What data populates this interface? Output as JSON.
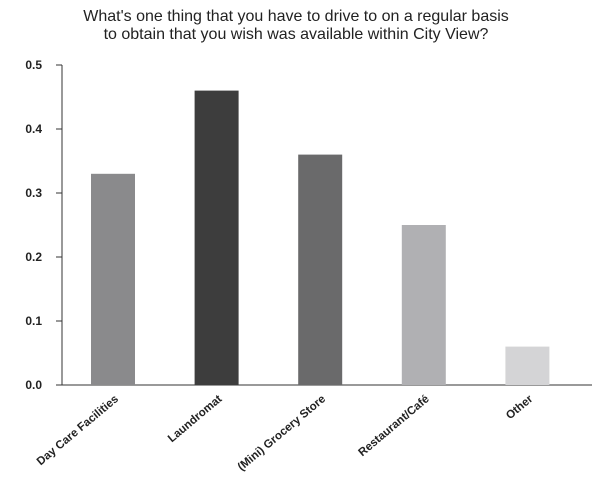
{
  "chart_data": {
    "type": "bar",
    "title_lines": [
      "What's one thing that you have to drive to on a regular basis",
      "to obtain that you wish was available within City View?"
    ],
    "categories": [
      "Day Care Facilities",
      "Laundromat",
      "(Mini) Grocery Store",
      "Restaurant/Café",
      "Other"
    ],
    "values": [
      0.33,
      0.46,
      0.36,
      0.25,
      0.06
    ],
    "bar_colors": [
      "#8a8a8c",
      "#3d3d3d",
      "#6a6a6b",
      "#b0b0b3",
      "#d4d4d6"
    ],
    "ylim": [
      0,
      0.5
    ],
    "yticks": [
      "0.0",
      "0.1",
      "0.2",
      "0.3",
      "0.4",
      "0.5"
    ],
    "grid": false,
    "xlabel": "",
    "ylabel": ""
  }
}
